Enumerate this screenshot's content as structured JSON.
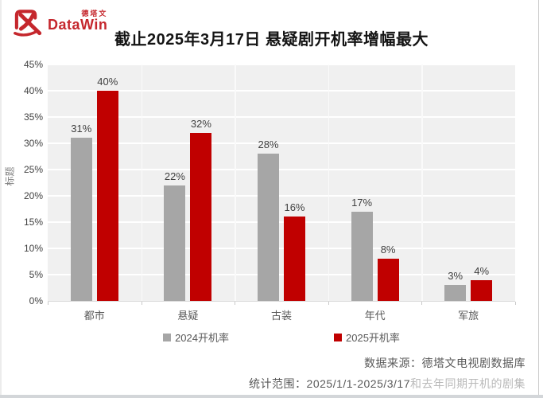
{
  "logo": {
    "brand_cn": "德塔文",
    "brand_en": "DataWin",
    "color": "#c5272d"
  },
  "title": "截止2025年3月17日 悬疑剧开机率增幅最大",
  "chart_data": {
    "type": "bar",
    "title": "截止2025年3月17日 悬疑剧开机率增幅最大",
    "categories": [
      "都市",
      "悬疑",
      "古装",
      "年代",
      "军旅"
    ],
    "series": [
      {
        "name": "2024开机率",
        "color": "#a6a6a6",
        "values": [
          31,
          22,
          28,
          17,
          3
        ]
      },
      {
        "name": "2025开机率",
        "color": "#c00000",
        "values": [
          40,
          32,
          16,
          8,
          4
        ]
      }
    ],
    "value_label_suffix": "%",
    "xlabel": "",
    "ylabel": "标题",
    "ylim": [
      0,
      45
    ],
    "ytick_step": 5,
    "ytick_suffix": "%",
    "grid": true,
    "legend_position": "bottom",
    "plot_background": "#f0f0f0"
  },
  "footer": {
    "source": "数据来源：德塔文电视剧数据库",
    "scope_prefix": "统计范围：2025/1/1-2025/3/17",
    "scope_faded": "和去年同期开机的剧集"
  }
}
